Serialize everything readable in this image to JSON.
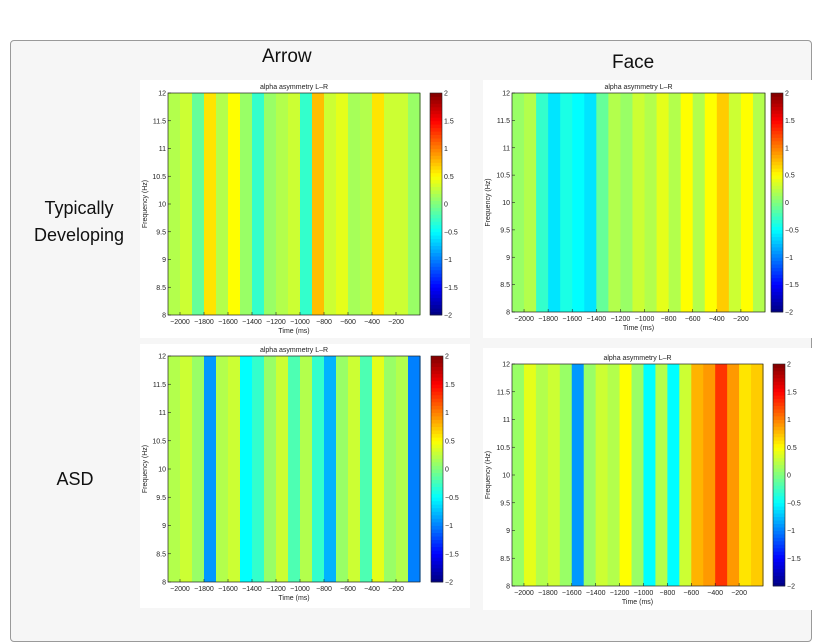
{
  "column_titles": [
    "Arrow",
    "Face"
  ],
  "row_labels": [
    "Typically Developing",
    "ASD"
  ],
  "chart_data": [
    {
      "type": "heatmap",
      "panel": "Typically Developing / Arrow",
      "title": "alpha asymmetry L–R",
      "xlabel": "Time (ms)",
      "ylabel": "Frequency (Hz)",
      "xlim": [
        -2100,
        0
      ],
      "ylim": [
        8,
        12
      ],
      "clim": [
        -2,
        2
      ],
      "colormap": "jet",
      "xticks": [
        -2000,
        -1800,
        -1600,
        -1400,
        -1200,
        -1000,
        -800,
        -600,
        -400,
        -200
      ],
      "yticks": [
        8,
        8.5,
        9,
        9.5,
        10,
        10.5,
        11,
        11.5,
        12
      ],
      "cticks": [
        -2,
        -1.5,
        -1,
        -0.5,
        0,
        0.5,
        1,
        1.5,
        2
      ],
      "time": [
        -2050,
        -1950,
        -1850,
        -1750,
        -1650,
        -1550,
        -1450,
        -1350,
        -1250,
        -1150,
        -1050,
        -950,
        -850,
        -750,
        -650,
        -550,
        -450,
        -350,
        -250,
        -150,
        -50
      ],
      "values": [
        0.2,
        0.3,
        -0.1,
        0.6,
        0.2,
        0.5,
        0.1,
        -0.3,
        0.1,
        0.2,
        0.3,
        -0.3,
        0.75,
        0.3,
        0.4,
        0.15,
        0.2,
        0.6,
        0.3,
        0.3,
        0.1
      ]
    },
    {
      "type": "heatmap",
      "panel": "Typically Developing / Face",
      "title": "alpha asymmetry L–R",
      "xlabel": "Time (ms)",
      "ylabel": "Frequency (Hz)",
      "xlim": [
        -2100,
        0
      ],
      "ylim": [
        8,
        12
      ],
      "clim": [
        -2,
        2
      ],
      "colormap": "jet",
      "xticks": [
        -2000,
        -1800,
        -1600,
        -1400,
        -1200,
        -1000,
        -800,
        -600,
        -400,
        -200
      ],
      "yticks": [
        8,
        8.5,
        9,
        9.5,
        10,
        10.5,
        11,
        11.5,
        12
      ],
      "cticks": [
        -2,
        -1.5,
        -1,
        -0.5,
        0,
        0.5,
        1,
        1.5,
        2
      ],
      "time": [
        -2050,
        -1950,
        -1850,
        -1750,
        -1650,
        -1550,
        -1450,
        -1350,
        -1250,
        -1150,
        -1050,
        -950,
        -850,
        -750,
        -650,
        -550,
        -450,
        -350,
        -250,
        -150,
        -50
      ],
      "values": [
        0.1,
        0.2,
        -0.3,
        -0.6,
        -0.4,
        -0.5,
        -0.6,
        -0.1,
        0.2,
        0.1,
        0.3,
        0.2,
        0.4,
        0.2,
        0.5,
        0.2,
        0.5,
        0.7,
        0.3,
        0.5,
        0.2
      ]
    },
    {
      "type": "heatmap",
      "panel": "ASD / Arrow",
      "title": "alpha asymmetry L–R",
      "xlabel": "Time (ms)",
      "ylabel": "Frequency (Hz)",
      "xlim": [
        -2100,
        0
      ],
      "ylim": [
        8,
        12
      ],
      "clim": [
        -2,
        2
      ],
      "colormap": "jet",
      "xticks": [
        -2000,
        -1800,
        -1600,
        -1400,
        -1200,
        -1000,
        -800,
        -600,
        -400,
        -200
      ],
      "yticks": [
        8,
        8.5,
        9,
        9.5,
        10,
        10.5,
        11,
        11.5,
        12
      ],
      "cticks": [
        -2,
        -1.5,
        -1,
        -0.5,
        0,
        0.5,
        1,
        1.5,
        2
      ],
      "time": [
        -2050,
        -1950,
        -1850,
        -1750,
        -1650,
        -1550,
        -1450,
        -1350,
        -1250,
        -1150,
        -1050,
        -950,
        -850,
        -750,
        -650,
        -550,
        -450,
        -350,
        -250,
        -150,
        -50
      ],
      "values": [
        0.2,
        0.3,
        0.1,
        -0.9,
        0.2,
        0.3,
        -0.5,
        -0.3,
        0.1,
        0.3,
        -0.2,
        0.2,
        -0.3,
        -0.8,
        0.1,
        0.3,
        -0.2,
        0.4,
        0.1,
        0.2,
        -1.0
      ]
    },
    {
      "type": "heatmap",
      "panel": "ASD / Face",
      "title": "alpha asymmetry L–R",
      "xlabel": "Time (ms)",
      "ylabel": "Frequency (Hz)",
      "xlim": [
        -2100,
        0
      ],
      "ylim": [
        8,
        12
      ],
      "clim": [
        -2,
        2
      ],
      "colormap": "jet",
      "xticks": [
        -2000,
        -1800,
        -1600,
        -1400,
        -1200,
        -1000,
        -800,
        -600,
        -400,
        -200
      ],
      "yticks": [
        8,
        8.5,
        9,
        9.5,
        10,
        10.5,
        11,
        11.5,
        12
      ],
      "cticks": [
        -2,
        -1.5,
        -1,
        -0.5,
        0,
        0.5,
        1,
        1.5,
        2
      ],
      "time": [
        -2050,
        -1950,
        -1850,
        -1750,
        -1650,
        -1550,
        -1450,
        -1350,
        -1250,
        -1150,
        -1050,
        -950,
        -850,
        -750,
        -650,
        -550,
        -450,
        -350,
        -250,
        -150,
        -50
      ],
      "values": [
        0.1,
        0.4,
        0.2,
        0.3,
        0.1,
        -0.9,
        0.1,
        0.3,
        0.2,
        0.5,
        0.1,
        -0.5,
        0.2,
        -0.5,
        0.3,
        0.8,
        0.9,
        1.3,
        0.9,
        0.6,
        0.7
      ]
    }
  ]
}
